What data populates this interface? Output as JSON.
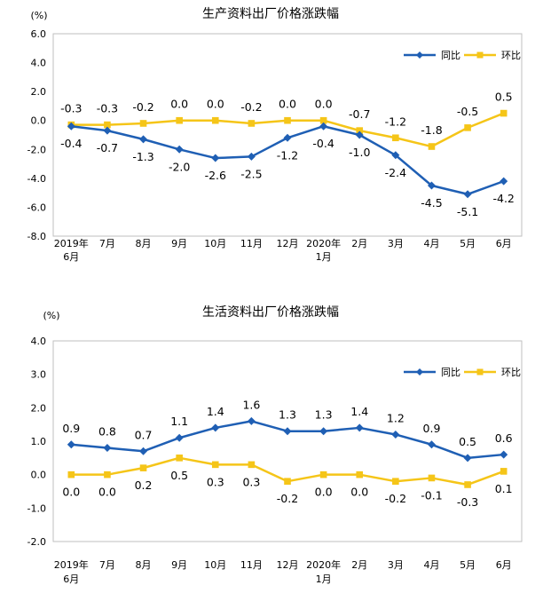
{
  "chart_data": [
    {
      "type": "line",
      "title": "生产资料出厂价格涨跌幅",
      "unit": "(%)",
      "categories": [
        [
          "2019年",
          "6月"
        ],
        [
          "7月"
        ],
        [
          "8月"
        ],
        [
          "9月"
        ],
        [
          "10月"
        ],
        [
          "11月"
        ],
        [
          "12月"
        ],
        [
          "2020年",
          "1月"
        ],
        [
          "2月"
        ],
        [
          "3月"
        ],
        [
          "4月"
        ],
        [
          "5月"
        ],
        [
          "6月"
        ]
      ],
      "ylim": [
        -8.0,
        6.0
      ],
      "yticks": [
        6.0,
        4.0,
        2.0,
        0.0,
        -2.0,
        -4.0,
        -6.0,
        -8.0
      ],
      "ytick_labels": [
        "6.0",
        "4.0",
        "2.0",
        "0.0",
        "-2.0",
        "-4.0",
        "-6.0",
        "-8.0"
      ],
      "legend_position": "top-right",
      "series": [
        {
          "name": "同比",
          "color": "#1F5FB4",
          "marker": "diamond",
          "values": [
            -0.4,
            -0.7,
            -1.3,
            -2.0,
            -2.6,
            -2.5,
            -1.2,
            -0.4,
            -1.0,
            -2.4,
            -4.5,
            -5.1,
            -4.2
          ],
          "labels": [
            "-0.4",
            "-0.7",
            "-1.3",
            "-2.0",
            "-2.6",
            "-2.5",
            "-1.2",
            "-0.4",
            "-1.0",
            "-2.4",
            "-4.5",
            "-5.1",
            "-4.2"
          ]
        },
        {
          "name": "环比",
          "color": "#F5C518",
          "marker": "square",
          "values": [
            -0.3,
            -0.3,
            -0.2,
            0.0,
            0.0,
            -0.2,
            0.0,
            0.0,
            -0.7,
            -1.2,
            -1.8,
            -0.5,
            0.5
          ],
          "labels": [
            "-0.3",
            "-0.3",
            "-0.2",
            "0.0",
            "0.0",
            "-0.2",
            "0.0",
            "0.0",
            "-0.7",
            "-1.2",
            "-1.8",
            "-0.5",
            "0.5"
          ]
        }
      ]
    },
    {
      "type": "line",
      "title": "生活资料出厂价格涨跌幅",
      "unit": "(%)",
      "categories": [
        [
          "2019年",
          "6月"
        ],
        [
          "7月"
        ],
        [
          "8月"
        ],
        [
          "9月"
        ],
        [
          "10月"
        ],
        [
          "11月"
        ],
        [
          "12月"
        ],
        [
          "2020年",
          "1月"
        ],
        [
          "2月"
        ],
        [
          "3月"
        ],
        [
          "4月"
        ],
        [
          "5月"
        ],
        [
          "6月"
        ]
      ],
      "ylim": [
        -2.0,
        4.0
      ],
      "yticks": [
        4.0,
        3.0,
        2.0,
        1.0,
        0.0,
        -1.0,
        -2.0
      ],
      "ytick_labels": [
        "4.0",
        "3.0",
        "2.0",
        "1.0",
        "0.0",
        "-1.0",
        "-2.0"
      ],
      "legend_position": "top-right",
      "series": [
        {
          "name": "同比",
          "color": "#1F5FB4",
          "marker": "diamond",
          "values": [
            0.9,
            0.8,
            0.7,
            1.1,
            1.4,
            1.6,
            1.3,
            1.3,
            1.4,
            1.2,
            0.9,
            0.5,
            0.6
          ],
          "labels": [
            "0.9",
            "0.8",
            "0.7",
            "1.1",
            "1.4",
            "1.6",
            "1.3",
            "1.3",
            "1.4",
            "1.2",
            "0.9",
            "0.5",
            "0.6"
          ]
        },
        {
          "name": "环比",
          "color": "#F5C518",
          "marker": "square",
          "values": [
            0.0,
            0.0,
            0.2,
            0.5,
            0.3,
            0.3,
            -0.2,
            0.0,
            0.0,
            -0.2,
            -0.1,
            -0.3,
            0.1
          ],
          "labels": [
            "0.0",
            "0.0",
            "0.2",
            "0.5",
            "0.3",
            "0.3",
            "-0.2",
            "0.0",
            "0.0",
            "-0.2",
            "-0.1",
            "-0.3",
            "0.1"
          ]
        }
      ]
    }
  ]
}
